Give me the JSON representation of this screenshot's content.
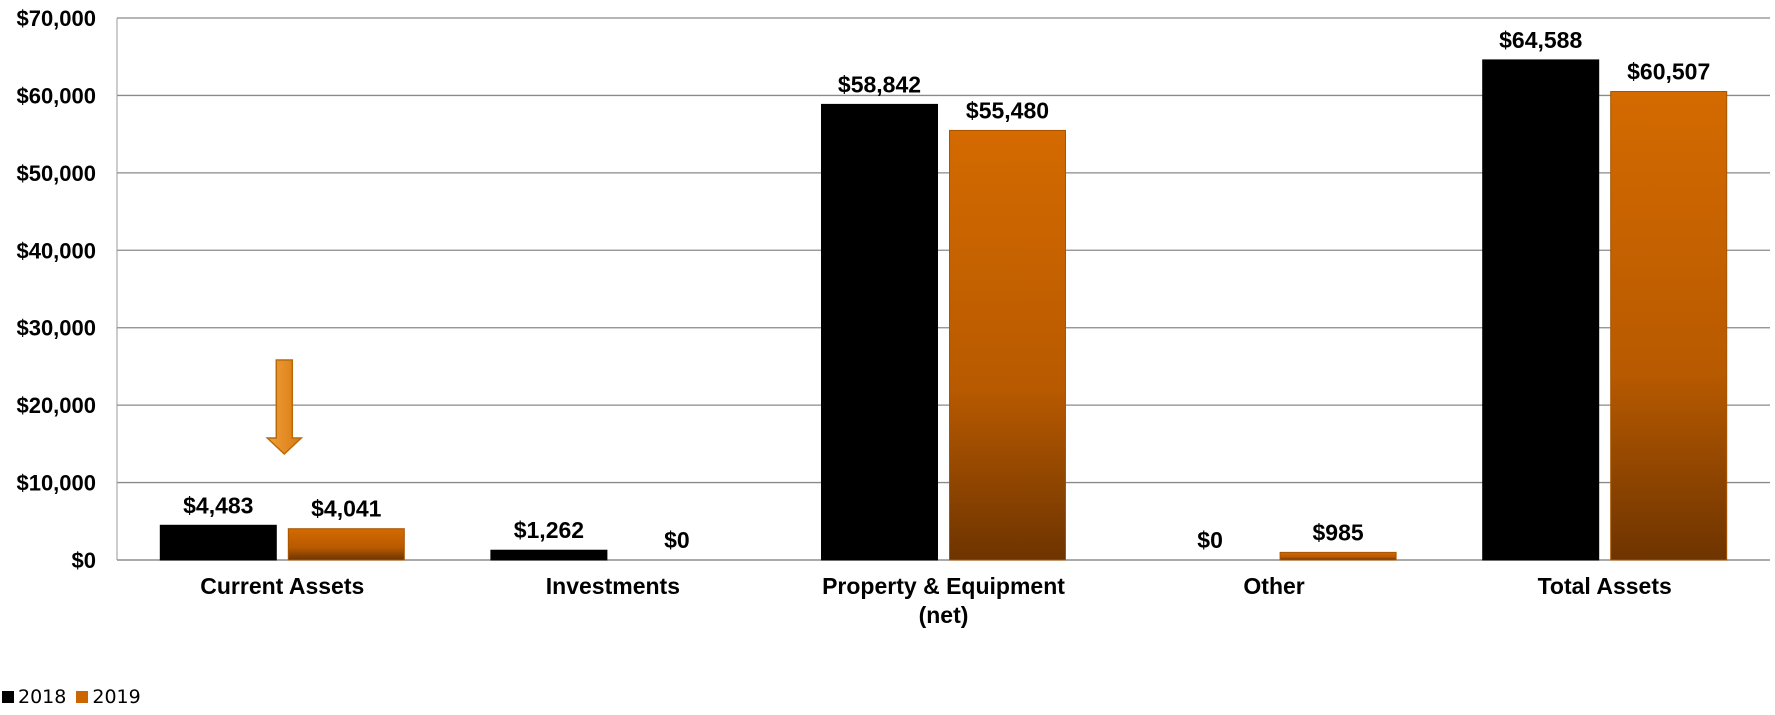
{
  "chart_data": {
    "type": "bar",
    "categories": [
      "Current Assets",
      "Investments",
      "Property & Equipment (net)",
      "Other",
      "Total Assets"
    ],
    "series": [
      {
        "name": "2018",
        "color": "#000000",
        "values": [
          4483,
          1262,
          58842,
          0,
          64588
        ],
        "labels": [
          "$4,483",
          "$1,262",
          "$58,842",
          "$0",
          "$64,588"
        ]
      },
      {
        "name": "2019",
        "color": "#cc6600",
        "values": [
          4041,
          0,
          55480,
          985,
          60507
        ],
        "labels": [
          "$4,041",
          "$0",
          "$55,480",
          "$985",
          "$60,507"
        ]
      }
    ],
    "ylim": [
      0,
      70000
    ],
    "y_ticks": [
      0,
      10000,
      20000,
      30000,
      40000,
      50000,
      60000,
      70000
    ],
    "y_tick_labels": [
      "$0",
      "$10,000",
      "$20,000",
      "$30,000",
      "$40,000",
      "$50,000",
      "$60,000",
      "$70,000"
    ],
    "grid": true,
    "legend_position": "bottom-left",
    "annotations": [
      {
        "type": "arrow",
        "direction": "down",
        "category": "Current Assets",
        "series": "2019",
        "color": "#e08a1e"
      }
    ]
  }
}
